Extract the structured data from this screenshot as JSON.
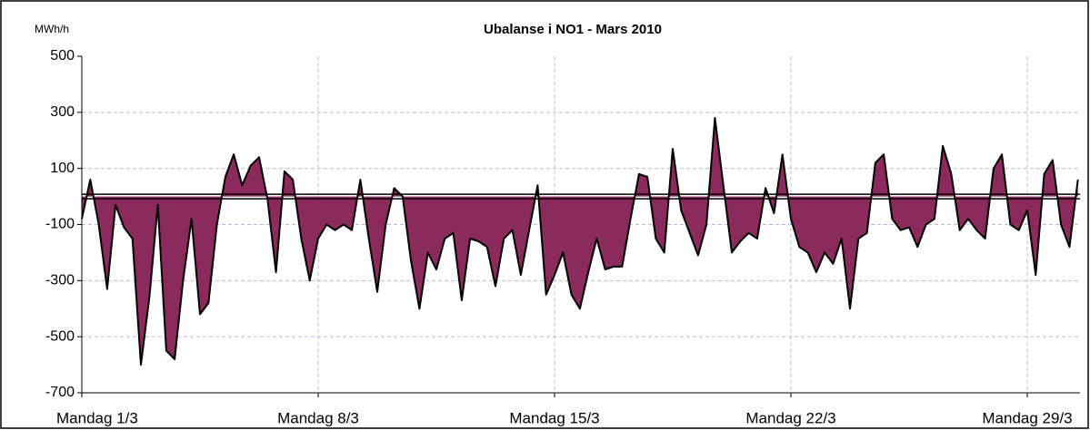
{
  "chart_data": {
    "type": "area",
    "title": "Ubalanse i NO1 -  Mars 2010",
    "y_label": "MWh/h",
    "ylim": [
      -700,
      500
    ],
    "yticks": [
      500,
      300,
      100,
      -100,
      -300,
      -500,
      -700
    ],
    "grid": true,
    "color": "#8b2a5c",
    "line_color": "#000000",
    "categories": [
      "Mandag 1/3",
      null,
      null,
      null,
      null,
      null,
      null,
      null,
      null,
      null,
      null,
      null,
      null,
      null,
      null,
      null,
      null,
      null,
      null,
      null,
      null,
      null,
      null,
      null,
      null,
      null,
      null,
      null,
      "Mandag 8/3",
      null,
      null,
      null,
      null,
      null,
      null,
      null,
      null,
      null,
      null,
      null,
      null,
      null,
      null,
      null,
      null,
      null,
      null,
      null,
      null,
      null,
      null,
      null,
      null,
      null,
      null,
      null,
      "Mandag  15/3",
      null,
      null,
      null,
      null,
      null,
      null,
      null,
      null,
      null,
      null,
      null,
      null,
      null,
      null,
      null,
      null,
      null,
      null,
      null,
      null,
      null,
      null,
      null,
      null,
      null,
      null,
      null,
      "Mandag  22/3",
      null,
      null,
      null,
      null,
      null,
      null,
      null,
      null,
      null,
      null,
      null,
      null,
      null,
      null,
      null,
      null,
      null,
      null,
      null,
      null,
      null,
      null,
      null,
      null,
      null,
      null,
      null,
      "Mandag 29/3",
      null,
      null,
      null,
      null,
      null,
      null
    ],
    "values": [
      -80,
      60,
      -100,
      -330,
      -30,
      -110,
      -150,
      -600,
      -360,
      -30,
      -550,
      -580,
      -300,
      -80,
      -420,
      -380,
      -100,
      70,
      150,
      40,
      110,
      140,
      -10,
      -270,
      90,
      60,
      -150,
      -300,
      -150,
      -100,
      -120,
      -100,
      -120,
      60,
      -150,
      -340,
      -100,
      30,
      0,
      -230,
      -400,
      -200,
      -260,
      -150,
      -130,
      -370,
      -150,
      -160,
      -180,
      -320,
      -150,
      -120,
      -280,
      -120,
      40,
      -350,
      -280,
      -200,
      -350,
      -400,
      -270,
      -150,
      -260,
      -250,
      -250,
      -80,
      80,
      70,
      -150,
      -200,
      170,
      -50,
      -130,
      -210,
      -100,
      280,
      40,
      -200,
      -160,
      -130,
      -150,
      30,
      -60,
      150,
      -80,
      -180,
      -200,
      -270,
      -200,
      -240,
      -150,
      -400,
      -150,
      -130,
      120,
      150,
      -80,
      -120,
      -110,
      -180,
      -100,
      -80,
      180,
      80,
      -120,
      -80,
      -120,
      -150,
      100,
      150,
      -100,
      -120,
      -50,
      -280,
      80,
      130,
      -100,
      -180,
      60
    ]
  }
}
